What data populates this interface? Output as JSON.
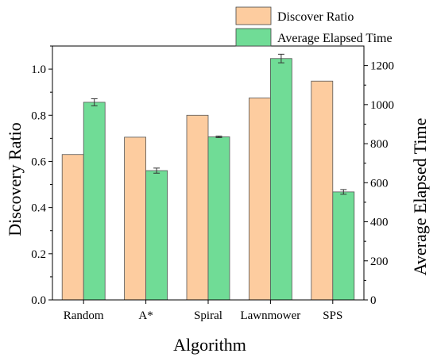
{
  "chart_data": {
    "type": "bar",
    "categories": [
      "Random",
      "A*",
      "Spiral",
      "Lawnmower",
      "SPS"
    ],
    "xlabel": "Algorithm",
    "ylabel_left": "Discovery Ratio",
    "ylabel_right": "Average Elapsed Time",
    "ylim_left": [
      0,
      1.1
    ],
    "ylim_right": [
      0,
      1300
    ],
    "yticks_left": [
      "0.0",
      "0.2",
      "0.4",
      "0.6",
      "0.8",
      "1.0"
    ],
    "yticks_right": [
      "0",
      "200",
      "400",
      "600",
      "800",
      "1000",
      "1200"
    ],
    "series": [
      {
        "name": "Discover Ratio",
        "axis": "left",
        "color": "#fdcc9f",
        "values": [
          0.63,
          0.705,
          0.8,
          0.875,
          0.948
        ]
      },
      {
        "name": "Average Elapsed Time",
        "axis": "right",
        "color": "#70dc96",
        "values": [
          1012,
          662,
          835,
          1236,
          553
        ],
        "errors": [
          18,
          13,
          4,
          22,
          12
        ]
      }
    ],
    "legend_position": "top-right",
    "grid": false
  }
}
